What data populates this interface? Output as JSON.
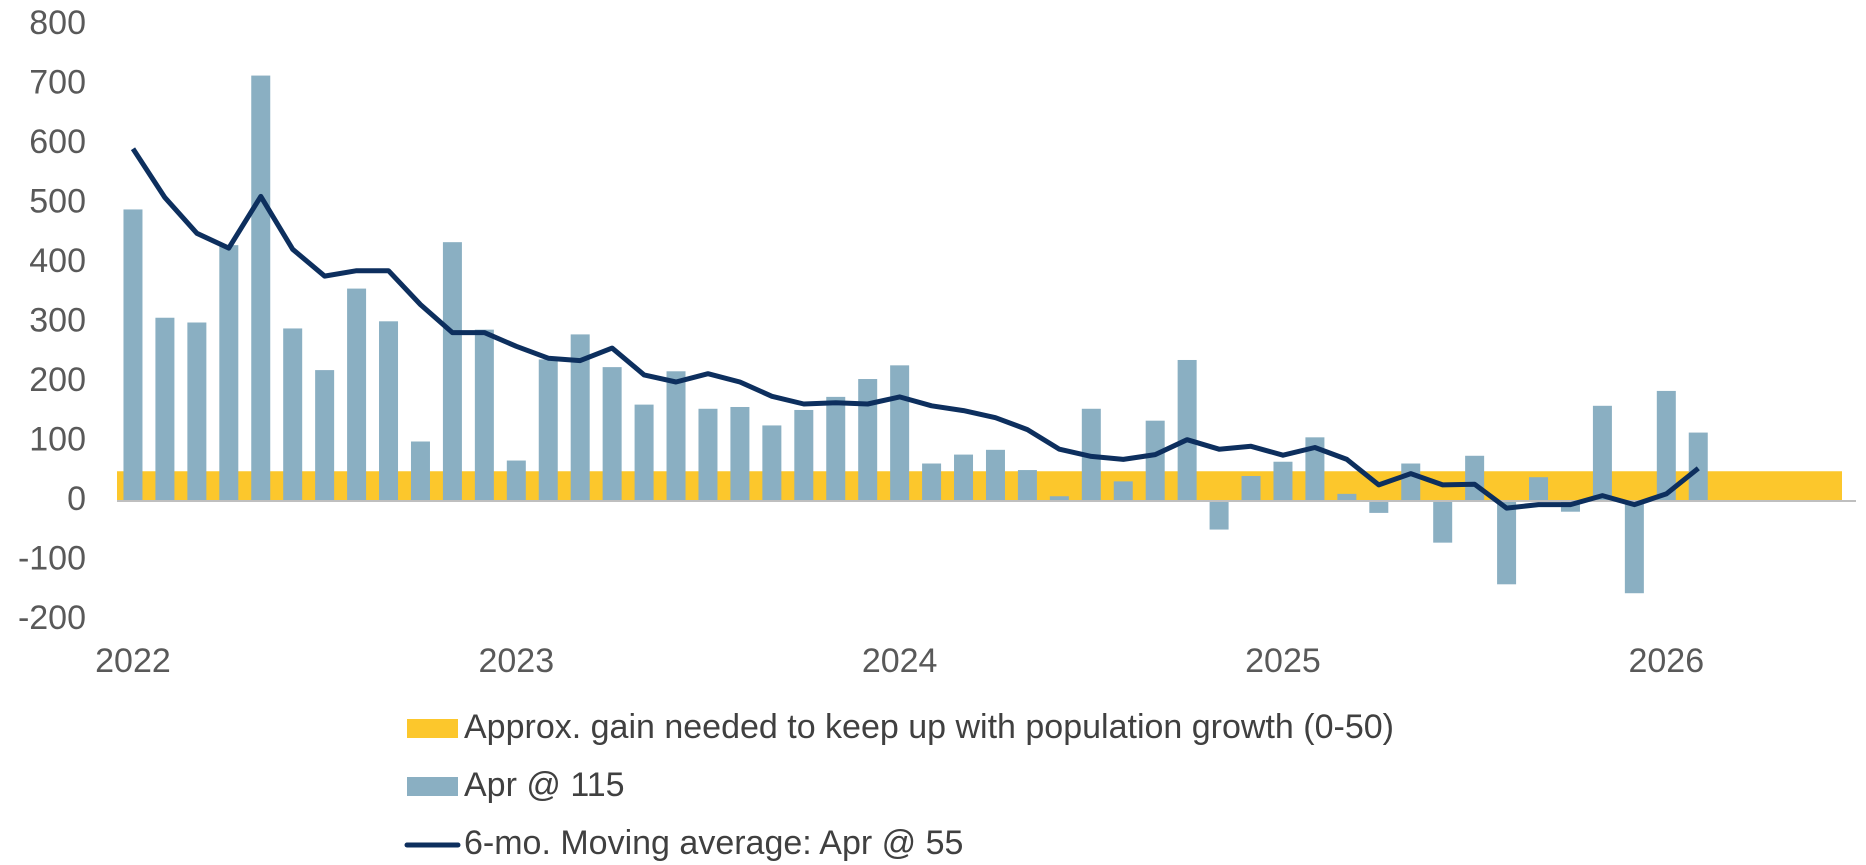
{
  "chart_data": {
    "type": "bar_line",
    "categories": [
      "2022",
      null,
      null,
      null,
      null,
      null,
      null,
      null,
      null,
      null,
      null,
      null,
      "2023",
      null,
      null,
      null,
      null,
      null,
      null,
      null,
      null,
      null,
      null,
      null,
      "2024",
      null,
      null,
      null,
      null,
      null,
      null,
      null,
      null,
      null,
      null,
      null,
      "2025",
      null,
      null,
      null,
      null,
      null,
      null,
      null,
      null,
      null,
      null,
      null,
      "2026",
      null,
      null,
      null,
      null,
      null
    ],
    "band": {
      "name": "Approx. gain needed to keep up with population growth (0-50)",
      "color": "#fcc72c",
      "range": [
        0,
        50
      ]
    },
    "series": [
      {
        "name": "Apr @ 115",
        "type": "bar",
        "color": "#8aafc2",
        "values": [
          490,
          308,
          300,
          430,
          715,
          290,
          220,
          357,
          302,
          100,
          435,
          288,
          68,
          238,
          280,
          225,
          162,
          218,
          155,
          158,
          127,
          153,
          175,
          205,
          228,
          63,
          78,
          86,
          52,
          8,
          155,
          33,
          135,
          237,
          -48,
          42,
          66,
          107,
          12,
          -20,
          63,
          -70,
          76,
          -140,
          40,
          -18,
          160,
          -155,
          185,
          115,
          null,
          null,
          null,
          null
        ]
      },
      {
        "name": "6-mo. Moving average: Apr @ 55",
        "type": "line",
        "color": "#0d2f5e",
        "values": [
          592,
          510,
          450,
          425,
          512,
          423,
          378,
          387,
          387,
          330,
          283,
          283,
          260,
          240,
          236,
          257,
          212,
          200,
          214,
          200,
          176,
          163,
          165,
          163,
          175,
          160,
          152,
          140,
          120,
          87,
          75,
          70,
          78,
          103,
          87,
          92,
          77,
          90,
          70,
          27,
          46,
          27,
          28,
          -12,
          -6,
          -6,
          9,
          -6,
          12,
          55,
          null,
          null,
          null,
          null
        ]
      }
    ],
    "ylim": [
      -200,
      800
    ],
    "yticks": [
      -200,
      -100,
      0,
      100,
      200,
      300,
      400,
      500,
      600,
      700,
      800
    ],
    "grid": false
  }
}
